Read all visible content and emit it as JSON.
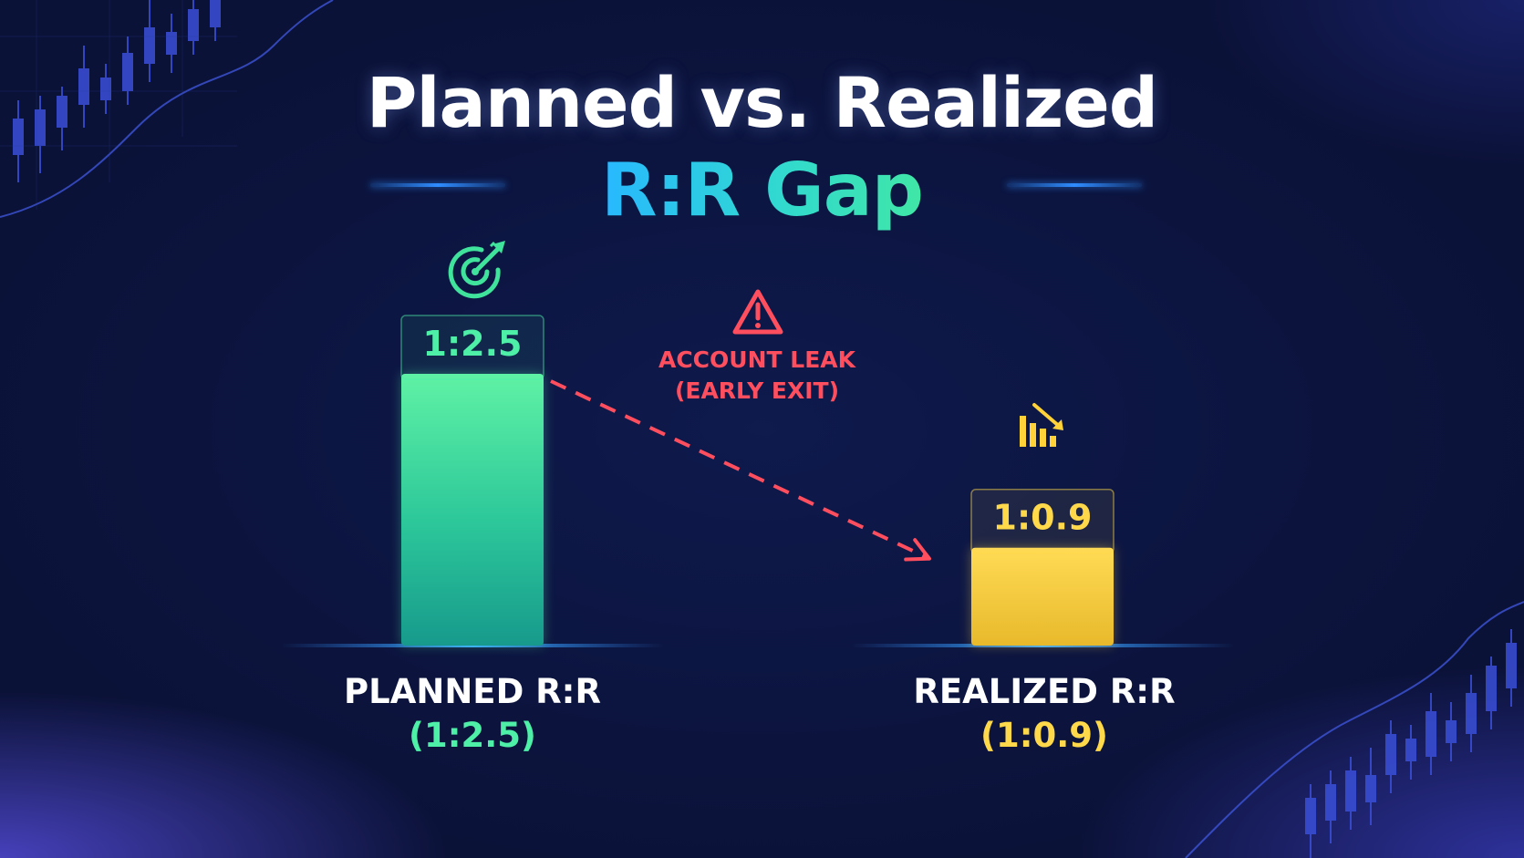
{
  "title": {
    "line1": "Planned vs. Realized",
    "line2": "R:R Gap"
  },
  "annotation": {
    "icon": "warning-triangle-icon",
    "line1": "ACCOUNT LEAK",
    "line2": "(EARLY EXIT)",
    "color": "#ff4e5e"
  },
  "icons": {
    "planned": "target-arrow-icon",
    "realized": "declining-bar-chart-icon"
  },
  "colors": {
    "planned": "#4ef0a8",
    "realized": "#ffd94a",
    "baseline": "#2f8cff",
    "background": "#0c1540"
  },
  "chart_data": {
    "type": "bar",
    "categories": [
      "PLANNED R:R",
      "REALIZED R:R"
    ],
    "category_sublabels": [
      "(1:2.5)",
      "(1:0.9)"
    ],
    "values": [
      2.5,
      0.9
    ],
    "data_labels": [
      "1:2.5",
      "1:0.9"
    ],
    "ylim": [
      0,
      2.5
    ],
    "grid": false,
    "title": "Planned vs. Realized R:R Gap",
    "xlabel": "",
    "ylabel": ""
  }
}
